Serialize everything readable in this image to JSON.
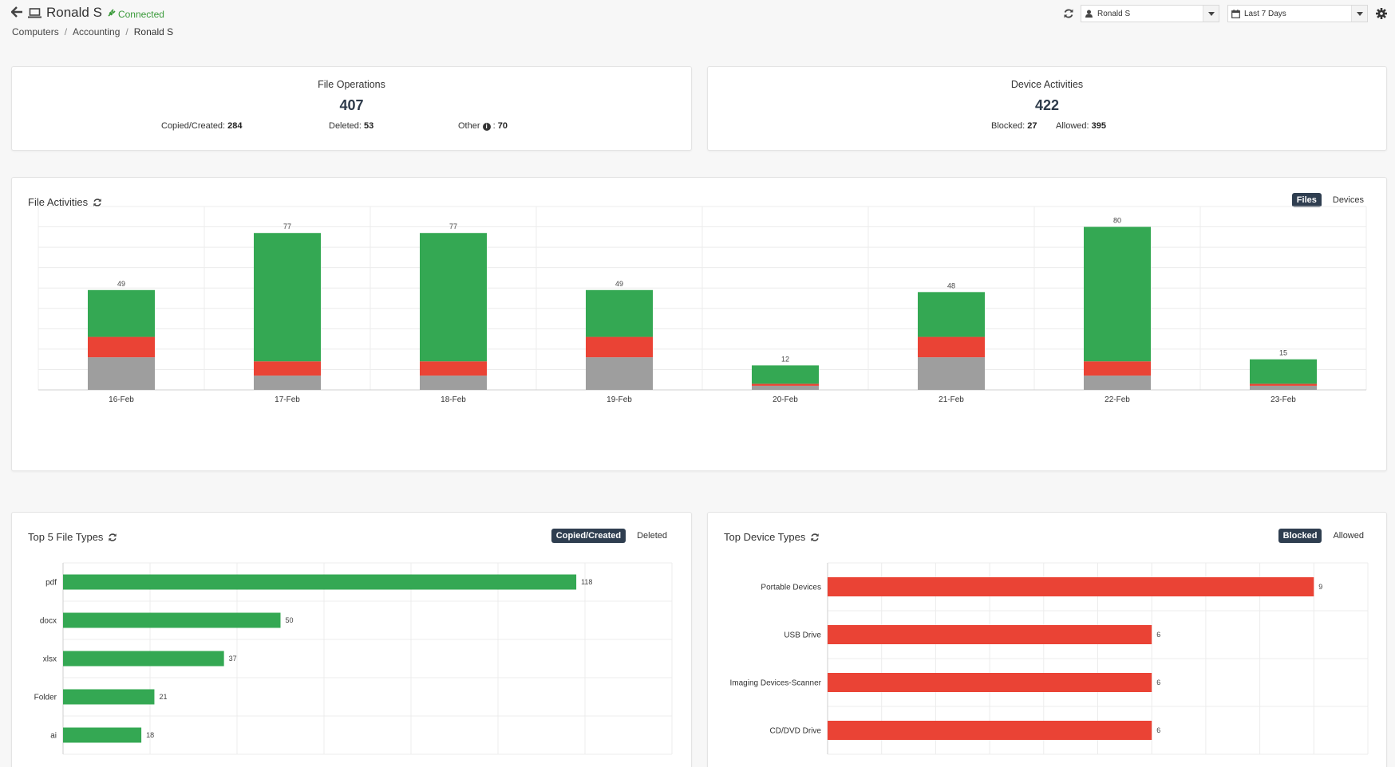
{
  "header": {
    "name": "Ronald S",
    "status": "Connected",
    "breadcrumbs": [
      "Computers",
      "Accounting",
      "Ronald S"
    ],
    "user_select": "Ronald S",
    "date_select": "Last 7 Days"
  },
  "file_operations": {
    "title": "File Operations",
    "total": "407",
    "copied_label": "Copied/Created:",
    "copied_value": "284",
    "deleted_label": "Deleted:",
    "deleted_value": "53",
    "other_label": "Other",
    "other_value": "70"
  },
  "device_activities": {
    "title": "Device Activities",
    "total": "422",
    "blocked_label": "Blocked:",
    "blocked_value": "27",
    "allowed_label": "Allowed:",
    "allowed_value": "395"
  },
  "file_activities": {
    "title": "File Activities",
    "toggle_active": "Files",
    "toggle_other": "Devices"
  },
  "top_file_types": {
    "title": "Top 5 File Types",
    "toggle_active": "Copied/Created",
    "toggle_other": "Deleted"
  },
  "top_device_types": {
    "title": "Top Device Types",
    "toggle_active": "Blocked",
    "toggle_other": "Allowed"
  },
  "colors": {
    "green": "#34a853",
    "red": "#ea4335",
    "gray": "#9e9e9e",
    "dark": "#2f3e50"
  },
  "chart_data": [
    {
      "type": "bar",
      "stacked": true,
      "categories": [
        "16-Feb",
        "17-Feb",
        "18-Feb",
        "19-Feb",
        "20-Feb",
        "21-Feb",
        "22-Feb",
        "23-Feb"
      ],
      "series": [
        {
          "values": [
            16,
            7,
            7,
            16,
            2,
            16,
            7,
            2
          ]
        },
        {
          "values": [
            10,
            7,
            7,
            10,
            1,
            10,
            7,
            1
          ]
        },
        {
          "values": [
            23,
            63,
            63,
            23,
            9,
            22,
            66,
            12
          ]
        }
      ],
      "totals": [
        49,
        77,
        77,
        49,
        12,
        48,
        80,
        15
      ],
      "ylim": [
        0,
        90
      ],
      "grid": true
    },
    {
      "type": "bar",
      "orientation": "horizontal",
      "categories": [
        "pdf",
        "docx",
        "xlsx",
        "Folder",
        "ai"
      ],
      "values": [
        118,
        50,
        37,
        21,
        18
      ],
      "xlim": [
        0,
        140
      ],
      "grid": true
    },
    {
      "type": "bar",
      "orientation": "horizontal",
      "categories": [
        "Portable Devices",
        "USB Drive",
        "Imaging Devices-Scanner",
        "CD/DVD Drive"
      ],
      "values": [
        9,
        6,
        6,
        6
      ],
      "xlim": [
        0,
        10
      ],
      "grid": true
    }
  ]
}
